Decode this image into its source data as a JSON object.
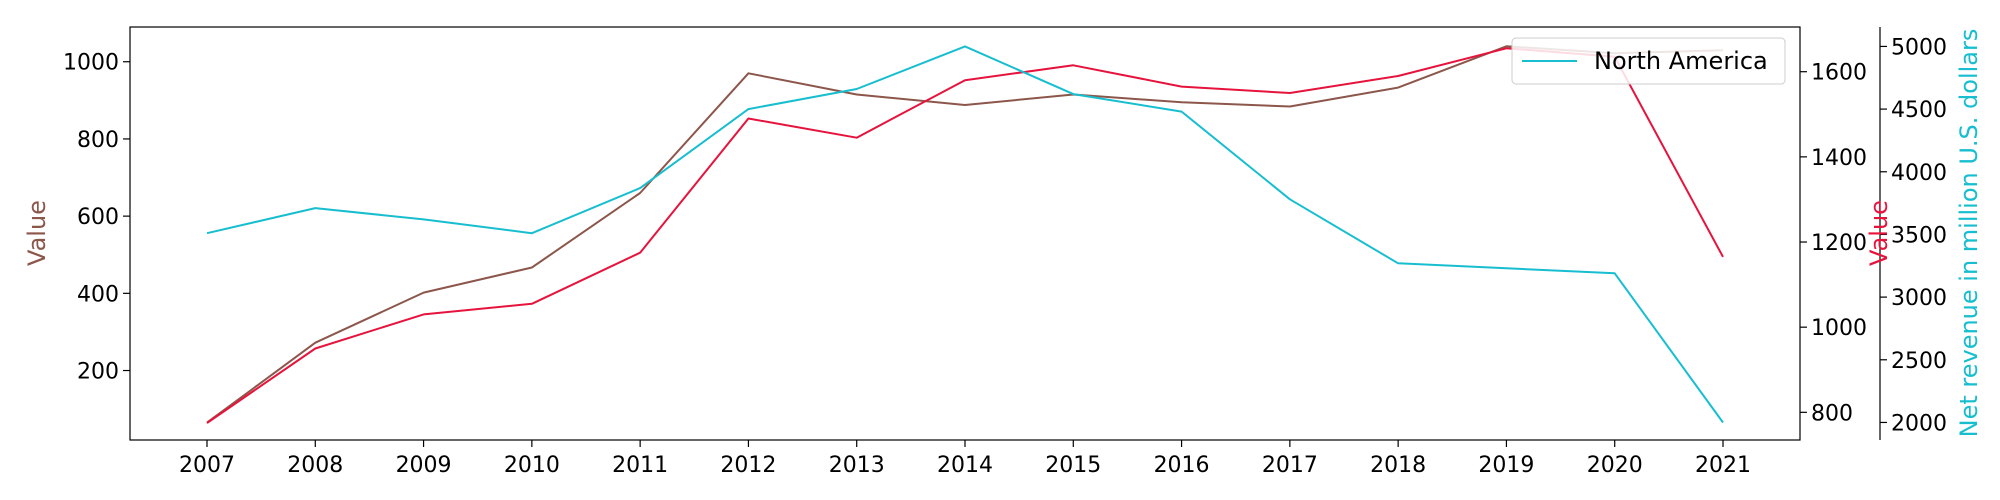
{
  "chart_data": {
    "type": "line",
    "x": [
      "2007",
      "2008",
      "2009",
      "2010",
      "2011",
      "2012",
      "2013",
      "2014",
      "2015",
      "2016",
      "2017",
      "2018",
      "2019",
      "2020",
      "2021"
    ],
    "axes": [
      {
        "id": "left",
        "label": "Value",
        "color": "#8c564b",
        "ylim": [
          20,
          1090
        ],
        "ticks": [
          200,
          400,
          600,
          800,
          1000
        ]
      },
      {
        "id": "right1",
        "label": "Value",
        "color": "#e6133d",
        "ylim": [
          735,
          1705
        ],
        "ticks": [
          800,
          1000,
          1200,
          1400,
          1600
        ]
      },
      {
        "id": "right2",
        "label": "Net revenue in million U.S. dollars",
        "color": "#17becf",
        "ylim": [
          1860,
          5155
        ],
        "ticks": [
          2000,
          2500,
          3000,
          3500,
          4000,
          4500,
          5000
        ]
      }
    ],
    "series": [
      {
        "axis": "left",
        "color": "#8c564b",
        "values": [
          65,
          272,
          402,
          467,
          660,
          970,
          915,
          888,
          915,
          895,
          884,
          933,
          1040,
          1022,
          1030
        ]
      },
      {
        "axis": "right1",
        "color": "#e6133d",
        "values": [
          775,
          950,
          1030,
          1055,
          1175,
          1490,
          1445,
          1580,
          1615,
          1565,
          1550,
          1590,
          1655,
          1635,
          1165
        ]
      },
      {
        "name": "North America",
        "axis": "right2",
        "color": "#17becf",
        "values": [
          3510,
          3710,
          3620,
          3510,
          3870,
          4500,
          4660,
          5000,
          4620,
          4480,
          3780,
          3270,
          3230,
          3190,
          2000
        ]
      }
    ],
    "legend": {
      "position": "top-right",
      "entries": [
        "North America"
      ]
    },
    "grid": false
  }
}
